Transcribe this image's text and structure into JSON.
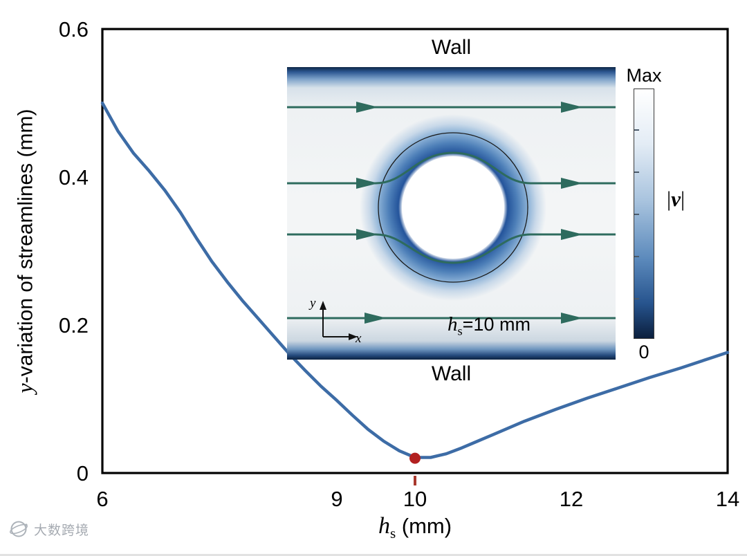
{
  "chart_data": {
    "type": "line",
    "title": "",
    "xlabel": {
      "variable": "h",
      "subscript": "s",
      "unit": " (mm)"
    },
    "ylabel": {
      "variable": "y",
      "rest": "-variation of streamlines (mm)"
    },
    "xlim": [
      6,
      14
    ],
    "ylim": [
      0,
      0.6
    ],
    "grid": false,
    "x_ticks": [
      {
        "v": 6,
        "label": "6"
      },
      {
        "v": 9,
        "label": "9"
      },
      {
        "v": 12,
        "label": "12"
      },
      {
        "v": 14,
        "label": "14"
      }
    ],
    "x_tick_highlight": {
      "v": 10,
      "label": "10",
      "color": "#a8392e"
    },
    "y_ticks": [
      {
        "v": 0,
        "label": "0"
      },
      {
        "v": 0.2,
        "label": "0.2"
      },
      {
        "v": 0.4,
        "label": "0.4"
      },
      {
        "v": 0.6,
        "label": "0.6"
      }
    ],
    "line_color": "#3d6ca6",
    "marker": {
      "x": 10,
      "y": 0.02,
      "color": "#b22020"
    },
    "series": [
      {
        "name": "y-variation of streamlines",
        "x": [
          6.0,
          6.2,
          6.4,
          6.6,
          6.8,
          7.0,
          7.2,
          7.4,
          7.6,
          7.8,
          8.0,
          8.2,
          8.4,
          8.6,
          8.8,
          9.0,
          9.2,
          9.4,
          9.6,
          9.8,
          10.0,
          10.2,
          10.4,
          10.6,
          10.8,
          11.0,
          11.4,
          11.8,
          12.2,
          12.6,
          13.0,
          13.4,
          13.8,
          14.0
        ],
        "y": [
          0.5,
          0.462,
          0.432,
          0.408,
          0.382,
          0.352,
          0.318,
          0.286,
          0.258,
          0.232,
          0.208,
          0.184,
          0.16,
          0.138,
          0.117,
          0.098,
          0.078,
          0.059,
          0.043,
          0.03,
          0.021,
          0.021,
          0.026,
          0.034,
          0.043,
          0.052,
          0.07,
          0.086,
          0.101,
          0.115,
          0.129,
          0.142,
          0.156,
          0.163
        ]
      }
    ]
  },
  "inset": {
    "wall_top_label": "Wall",
    "wall_bottom_label": "Wall",
    "annotation": {
      "variable": "h",
      "subscript": "s",
      "rest": "=10 mm"
    },
    "coord_axes": {
      "x_label": "x",
      "y_label": "y"
    },
    "colorbar": {
      "max_label": "Max",
      "min_label": "0",
      "quantity_open": "|",
      "quantity_var": "v",
      "quantity_close": "|"
    }
  },
  "watermark": {
    "text": "大数跨境"
  }
}
